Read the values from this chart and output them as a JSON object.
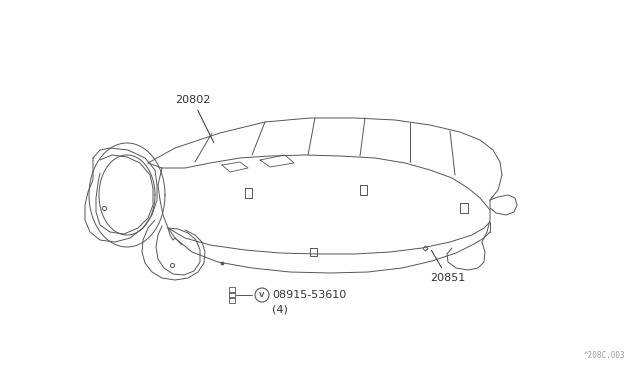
{
  "background_color": "#ffffff",
  "line_color": "#555555",
  "label_color": "#333333",
  "figure_width": 6.4,
  "figure_height": 3.72,
  "dpi": 100,
  "diagram_code": "^208C.003",
  "line_width": 0.7
}
